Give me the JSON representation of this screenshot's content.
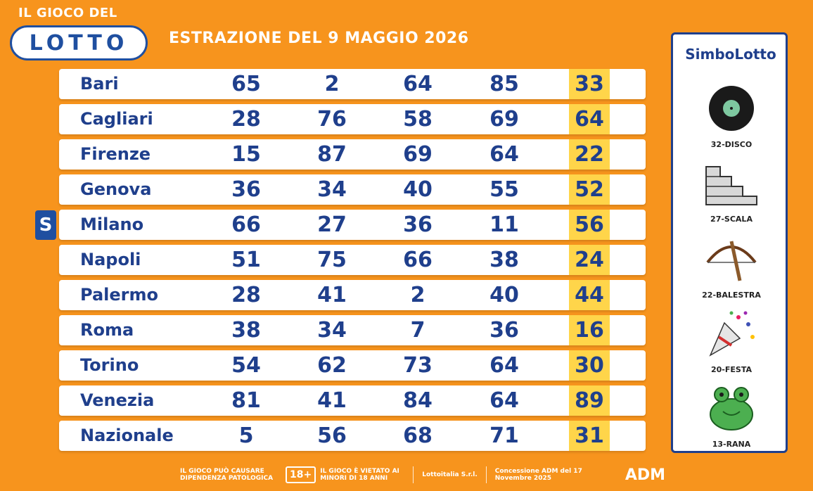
{
  "brand": {
    "top_text": "IL GIOCO DEL",
    "logo_text": "LOTTO"
  },
  "title": "ESTRAZIONE DEL 9 MAGGIO 2026",
  "highlight_color": "#ffd54a",
  "rows": [
    {
      "city": "Bari",
      "numbers": [
        "65",
        "2",
        "64",
        "85",
        "33"
      ]
    },
    {
      "city": "Cagliari",
      "numbers": [
        "28",
        "76",
        "58",
        "69",
        "64"
      ]
    },
    {
      "city": "Firenze",
      "numbers": [
        "15",
        "87",
        "69",
        "64",
        "22"
      ]
    },
    {
      "city": "Genova",
      "numbers": [
        "36",
        "34",
        "40",
        "55",
        "52"
      ]
    },
    {
      "city": "Milano",
      "numbers": [
        "66",
        "27",
        "36",
        "11",
        "56"
      ]
    },
    {
      "city": "Napoli",
      "numbers": [
        "51",
        "75",
        "66",
        "38",
        "24"
      ]
    },
    {
      "city": "Palermo",
      "numbers": [
        "28",
        "41",
        "2",
        "40",
        "44"
      ]
    },
    {
      "city": "Roma",
      "numbers": [
        "38",
        "34",
        "7",
        "36",
        "16"
      ]
    },
    {
      "city": "Torino",
      "numbers": [
        "54",
        "62",
        "73",
        "64",
        "30"
      ]
    },
    {
      "city": "Venezia",
      "numbers": [
        "81",
        "41",
        "84",
        "64",
        "89"
      ]
    },
    {
      "city": "Nazionale",
      "numbers": [
        "5",
        "56",
        "68",
        "71",
        "31"
      ]
    }
  ],
  "marker": {
    "letter": "S"
  },
  "panel": {
    "title": "SimboLotto",
    "symbols": [
      {
        "label": "32-DISCO",
        "icon": "disco-icon"
      },
      {
        "label": "27-SCALA",
        "icon": "scala-icon"
      },
      {
        "label": "22-BALESTRA",
        "icon": "balestra-icon"
      },
      {
        "label": "20-FESTA",
        "icon": "festa-icon"
      },
      {
        "label": "13-RANA",
        "icon": "rana-icon"
      }
    ]
  },
  "footer": {
    "warning": "IL GIOCO PUÒ CAUSARE DIPENDENZA PATOLOGICA",
    "age_badge": "18+",
    "minors": "IL GIOCO È VIETATO AI MINORI DI 18 ANNI",
    "company": "Lottoitalia S.r.l.",
    "concession": "Concessione ADM del 17 Novembre 2025",
    "adm": "ADM"
  }
}
